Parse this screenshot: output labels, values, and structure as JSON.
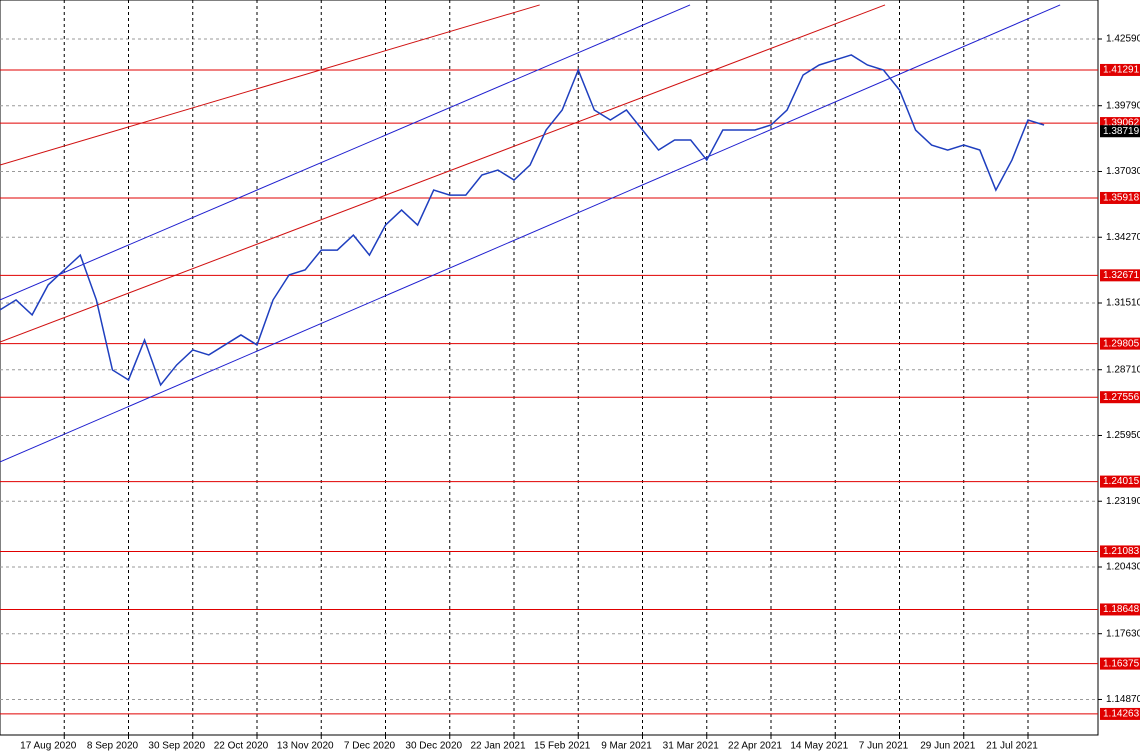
{
  "chart_data": {
    "type": "line",
    "categories": [
      null,
      null,
      null,
      null,
      "17 Aug 2020",
      null,
      null,
      null,
      "8 Sep 2020",
      null,
      null,
      null,
      "30 Sep 2020",
      null,
      null,
      null,
      "22 Oct 2020",
      null,
      null,
      null,
      "13 Nov 2020",
      null,
      null,
      null,
      "7 Dec 2020",
      null,
      null,
      null,
      "30 Dec 2020",
      null,
      null,
      null,
      "22 Jan 2021",
      null,
      null,
      null,
      "15 Feb 2021",
      null,
      null,
      null,
      "9 Mar 2021",
      null,
      null,
      null,
      "31 Mar 2021",
      null,
      null,
      null,
      "22 Apr 2021",
      null,
      null,
      null,
      "14 May 2021",
      null,
      null,
      null,
      "7 Jun 2021",
      null,
      null,
      null,
      "29 Jun 2021",
      null,
      null,
      null,
      "21 Jul 2021",
      null
    ],
    "values": [
      1.3122,
      1.3164,
      1.3101,
      1.3227,
      1.329,
      1.3352,
      1.3164,
      1.287,
      1.2828,
      1.2996,
      1.2807,
      1.2891,
      1.2954,
      1.2933,
      1.2975,
      1.3017,
      1.2975,
      1.3164,
      1.3269,
      1.329,
      1.3373,
      1.3373,
      1.3436,
      1.3352,
      1.3478,
      1.3541,
      1.3478,
      1.3625,
      1.3604,
      1.3604,
      1.3688,
      1.3709,
      1.3667,
      1.373,
      1.3877,
      1.3961,
      1.4129,
      1.3961,
      1.3919,
      1.3961,
      1.3877,
      1.3793,
      1.3835,
      1.3835,
      1.3751,
      1.3877,
      1.3877,
      1.3877,
      1.3898,
      1.3961,
      1.4108,
      1.415,
      1.4171,
      1.4192,
      1.415,
      1.4129,
      1.4045,
      1.3877,
      1.3814,
      1.3793,
      1.3814,
      1.3793,
      1.3625,
      1.3751,
      1.3919,
      1.3898
    ],
    "color": "#1f3fbf",
    "ylim": [
      1.13379,
      1.44227
    ],
    "yticks": [
      {
        "value": 1.4259,
        "label": "1.42590"
      },
      {
        "value": 1.3979,
        "label": "1.39790"
      },
      {
        "value": 1.3703,
        "label": "1.37030"
      },
      {
        "value": 1.3427,
        "label": "1.34270"
      },
      {
        "value": 1.3151,
        "label": "1.31510"
      },
      {
        "value": 1.2871,
        "label": "1.28710"
      },
      {
        "value": 1.2595,
        "label": "1.25950"
      },
      {
        "value": 1.2319,
        "label": "1.23190"
      },
      {
        "value": 1.2043,
        "label": "1.20430"
      },
      {
        "value": 1.1763,
        "label": "1.17630"
      },
      {
        "value": 1.1487,
        "label": "1.14870"
      }
    ],
    "grid": true,
    "levels": [
      1.41291,
      1.39062,
      1.35918,
      1.32671,
      1.29805,
      1.27556,
      1.24015,
      1.21083,
      1.18648,
      1.16375,
      1.14263
    ],
    "level_color": "#e00000",
    "last_price": 1.38719,
    "trendlines": [
      {
        "color": "#1f1fcf",
        "x": [
          0,
          66
        ],
        "y": [
          1.2484,
          1.4402
        ]
      },
      {
        "color": "#1f1fcf",
        "x": [
          0,
          42.96
        ],
        "y": [
          1.3164,
          1.4402
        ]
      },
      {
        "color": "#d01010",
        "x": [
          0,
          33.6
        ],
        "y": [
          1.373,
          1.4402
        ]
      },
      {
        "color": "#d01010",
        "x": [
          0,
          55.1
        ],
        "y": [
          1.2987,
          1.4402
        ]
      }
    ]
  }
}
